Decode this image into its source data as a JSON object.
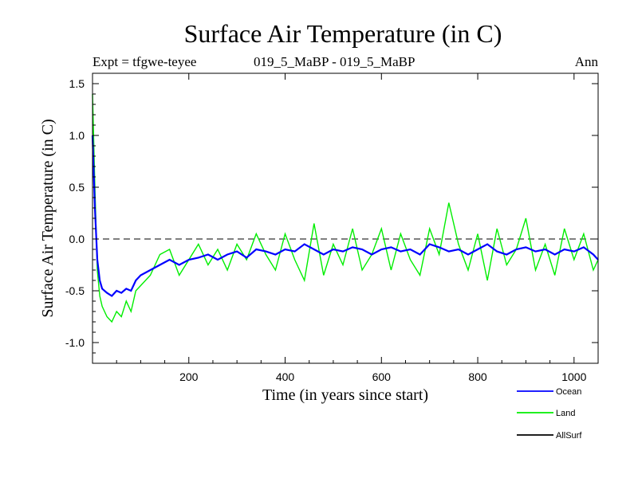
{
  "header": {
    "title": "Surface Air Temperature (in C)",
    "expt": "Expt = tfgwe-teyee",
    "period": "019_5_MaBP - 019_5_MaBP",
    "season": "Ann"
  },
  "colors": {
    "ocean": "#0000ff",
    "land": "#00ee00",
    "allsurf": "#000000",
    "axis": "#000000"
  },
  "chart_data": {
    "type": "line",
    "title": "Surface Air Temperature (in C)",
    "xlabel": "Time (in years since start)",
    "ylabel": "Surface Air Temperature (in C)",
    "xlim": [
      0,
      1050
    ],
    "ylim": [
      -1.2,
      1.6
    ],
    "xticks": [
      200,
      400,
      600,
      800,
      1000
    ],
    "xtick_labels": [
      "200",
      "400",
      "600",
      "800",
      "1000"
    ],
    "yticks": [
      -1.0,
      -0.5,
      0.0,
      0.5,
      1.0,
      1.5
    ],
    "ytick_labels": [
      "-1.0",
      "-0.5",
      "0.0",
      "0.5",
      "1.0",
      "1.5"
    ],
    "reference_line": {
      "y": 0.0,
      "style": "dashed"
    },
    "legend": {
      "position": "bottom-right",
      "entries": [
        "Ocean",
        "Land",
        "AllSurf"
      ]
    },
    "series": [
      {
        "name": "Ocean",
        "color": "#0000ff",
        "x": [
          0,
          5,
          10,
          15,
          20,
          30,
          40,
          50,
          60,
          70,
          80,
          90,
          100,
          120,
          140,
          160,
          180,
          200,
          220,
          240,
          260,
          280,
          300,
          320,
          340,
          360,
          380,
          400,
          420,
          440,
          460,
          480,
          500,
          520,
          540,
          560,
          580,
          600,
          620,
          640,
          660,
          680,
          700,
          720,
          740,
          760,
          780,
          800,
          820,
          840,
          860,
          880,
          900,
          920,
          940,
          960,
          980,
          1000,
          1020,
          1040,
          1050
        ],
        "y": [
          1.0,
          0.3,
          -0.2,
          -0.4,
          -0.48,
          -0.52,
          -0.55,
          -0.5,
          -0.52,
          -0.48,
          -0.5,
          -0.4,
          -0.35,
          -0.3,
          -0.25,
          -0.2,
          -0.25,
          -0.2,
          -0.18,
          -0.15,
          -0.2,
          -0.15,
          -0.12,
          -0.18,
          -0.1,
          -0.12,
          -0.15,
          -0.1,
          -0.12,
          -0.05,
          -0.1,
          -0.15,
          -0.1,
          -0.12,
          -0.08,
          -0.1,
          -0.15,
          -0.1,
          -0.08,
          -0.12,
          -0.1,
          -0.15,
          -0.05,
          -0.08,
          -0.12,
          -0.1,
          -0.15,
          -0.1,
          -0.05,
          -0.12,
          -0.15,
          -0.1,
          -0.08,
          -0.12,
          -0.1,
          -0.15,
          -0.1,
          -0.12,
          -0.08,
          -0.15,
          -0.2
        ]
      },
      {
        "name": "Land",
        "color": "#00ee00",
        "x": [
          0,
          5,
          10,
          15,
          20,
          30,
          40,
          50,
          60,
          70,
          80,
          90,
          100,
          120,
          140,
          160,
          180,
          200,
          220,
          240,
          260,
          280,
          300,
          320,
          340,
          360,
          380,
          400,
          420,
          440,
          460,
          480,
          500,
          520,
          540,
          560,
          580,
          600,
          620,
          640,
          660,
          680,
          700,
          720,
          740,
          760,
          780,
          800,
          820,
          840,
          860,
          880,
          900,
          920,
          940,
          960,
          980,
          1000,
          1020,
          1040,
          1050
        ],
        "y": [
          1.4,
          0.5,
          -0.3,
          -0.55,
          -0.65,
          -0.75,
          -0.8,
          -0.7,
          -0.75,
          -0.6,
          -0.7,
          -0.5,
          -0.45,
          -0.35,
          -0.15,
          -0.1,
          -0.35,
          -0.2,
          -0.05,
          -0.25,
          -0.1,
          -0.3,
          -0.05,
          -0.2,
          0.05,
          -0.15,
          -0.3,
          0.05,
          -0.2,
          -0.4,
          0.15,
          -0.35,
          -0.05,
          -0.25,
          0.1,
          -0.3,
          -0.15,
          0.1,
          -0.3,
          0.05,
          -0.2,
          -0.35,
          0.1,
          -0.15,
          0.35,
          -0.05,
          -0.3,
          0.05,
          -0.4,
          0.1,
          -0.25,
          -0.1,
          0.2,
          -0.3,
          -0.05,
          -0.35,
          0.1,
          -0.2,
          0.05,
          -0.3,
          -0.2
        ]
      },
      {
        "name": "AllSurf",
        "color": "#000000",
        "x": [],
        "y": []
      }
    ]
  }
}
